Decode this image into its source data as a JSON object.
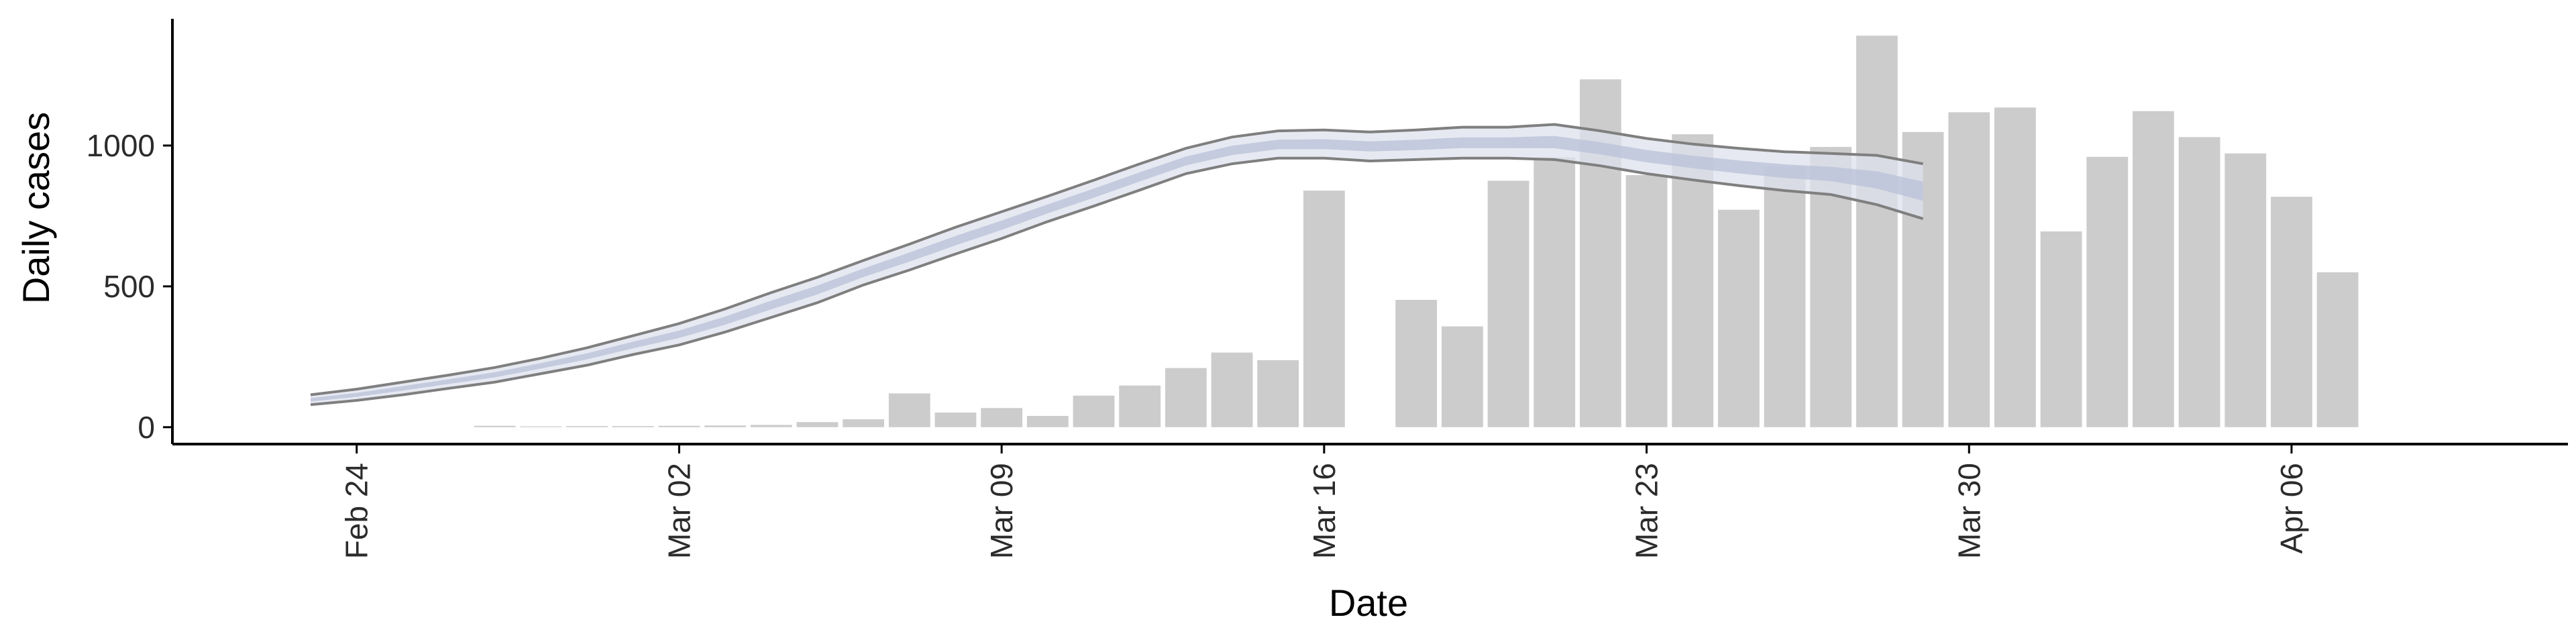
{
  "chart_data": {
    "type": "bar",
    "xlabel": "Date",
    "ylabel": "Daily cases",
    "xlim": [
      "2020-02-20",
      "2020-04-12"
    ],
    "ylim": [
      -60,
      1450
    ],
    "x_ticks": [
      {
        "date": "2020-02-24",
        "label": "Feb 24"
      },
      {
        "date": "2020-03-02",
        "label": "Mar 02"
      },
      {
        "date": "2020-03-09",
        "label": "Mar 09"
      },
      {
        "date": "2020-03-16",
        "label": "Mar 16"
      },
      {
        "date": "2020-03-23",
        "label": "Mar 23"
      },
      {
        "date": "2020-03-30",
        "label": "Mar 30"
      },
      {
        "date": "2020-04-06",
        "label": "Apr 06"
      }
    ],
    "y_ticks": [
      0,
      500,
      1000
    ],
    "grid": false,
    "colors": {
      "bars": "#cccccc",
      "band_outer": "#dde1ec",
      "band_inner": "#bcc3da",
      "band_edge": "#7f7f7f",
      "axis": "#000000"
    },
    "bars": [
      {
        "date": "2020-02-27",
        "value": 5
      },
      {
        "date": "2020-02-28",
        "value": 3
      },
      {
        "date": "2020-02-29",
        "value": 4
      },
      {
        "date": "2020-03-01",
        "value": 4
      },
      {
        "date": "2020-03-02",
        "value": 5
      },
      {
        "date": "2020-03-03",
        "value": 6
      },
      {
        "date": "2020-03-04",
        "value": 8
      },
      {
        "date": "2020-03-05",
        "value": 18
      },
      {
        "date": "2020-03-06",
        "value": 28
      },
      {
        "date": "2020-03-07",
        "value": 120
      },
      {
        "date": "2020-03-08",
        "value": 52
      },
      {
        "date": "2020-03-09",
        "value": 68
      },
      {
        "date": "2020-03-10",
        "value": 40
      },
      {
        "date": "2020-03-11",
        "value": 112
      },
      {
        "date": "2020-03-12",
        "value": 148
      },
      {
        "date": "2020-03-13",
        "value": 210
      },
      {
        "date": "2020-03-14",
        "value": 265
      },
      {
        "date": "2020-03-15",
        "value": 238
      },
      {
        "date": "2020-03-16",
        "value": 840
      },
      {
        "date": "2020-03-18",
        "value": 452
      },
      {
        "date": "2020-03-19",
        "value": 358
      },
      {
        "date": "2020-03-20",
        "value": 875
      },
      {
        "date": "2020-03-21",
        "value": 958
      },
      {
        "date": "2020-03-22",
        "value": 1235
      },
      {
        "date": "2020-03-23",
        "value": 895
      },
      {
        "date": "2020-03-24",
        "value": 1040
      },
      {
        "date": "2020-03-25",
        "value": 772
      },
      {
        "date": "2020-03-26",
        "value": 925
      },
      {
        "date": "2020-03-27",
        "value": 995
      },
      {
        "date": "2020-03-28",
        "value": 1390
      },
      {
        "date": "2020-03-29",
        "value": 1048
      },
      {
        "date": "2020-03-30",
        "value": 1118
      },
      {
        "date": "2020-03-31",
        "value": 1135
      },
      {
        "date": "2020-04-01",
        "value": 695
      },
      {
        "date": "2020-04-02",
        "value": 960
      },
      {
        "date": "2020-04-03",
        "value": 1122
      },
      {
        "date": "2020-04-04",
        "value": 1030
      },
      {
        "date": "2020-04-05",
        "value": 972
      },
      {
        "date": "2020-04-06",
        "value": 818
      },
      {
        "date": "2020-04-07",
        "value": 550
      }
    ],
    "band": {
      "dates": [
        "2020-02-23",
        "2020-02-24",
        "2020-02-25",
        "2020-02-26",
        "2020-02-27",
        "2020-02-28",
        "2020-02-29",
        "2020-03-01",
        "2020-03-02",
        "2020-03-03",
        "2020-03-04",
        "2020-03-05",
        "2020-03-06",
        "2020-03-07",
        "2020-03-08",
        "2020-03-09",
        "2020-03-10",
        "2020-03-11",
        "2020-03-12",
        "2020-03-13",
        "2020-03-14",
        "2020-03-15",
        "2020-03-16",
        "2020-03-17",
        "2020-03-18",
        "2020-03-19",
        "2020-03-20",
        "2020-03-21",
        "2020-03-22",
        "2020-03-23",
        "2020-03-24",
        "2020-03-25",
        "2020-03-26",
        "2020-03-27",
        "2020-03-28",
        "2020-03-29"
      ],
      "upper": [
        115,
        135,
        160,
        185,
        212,
        245,
        282,
        325,
        368,
        420,
        478,
        532,
        592,
        650,
        710,
        765,
        820,
        877,
        935,
        990,
        1030,
        1052,
        1055,
        1048,
        1055,
        1065,
        1065,
        1075,
        1052,
        1025,
        1005,
        990,
        978,
        972,
        965,
        935
      ],
      "lower": [
        80,
        95,
        115,
        138,
        160,
        190,
        220,
        258,
        292,
        338,
        390,
        442,
        505,
        558,
        615,
        670,
        730,
        785,
        842,
        900,
        935,
        955,
        955,
        945,
        950,
        955,
        955,
        950,
        928,
        900,
        878,
        858,
        840,
        826,
        790,
        740
      ],
      "median": [
        97,
        115,
        138,
        162,
        186,
        218,
        252,
        292,
        330,
        378,
        434,
        487,
        548,
        604,
        662,
        717,
        775,
        831,
        889,
        945,
        983,
        1004,
        1005,
        997,
        1002,
        1010,
        1010,
        1012,
        990,
        962,
        942,
        924,
        909,
        899,
        878,
        838
      ]
    }
  }
}
